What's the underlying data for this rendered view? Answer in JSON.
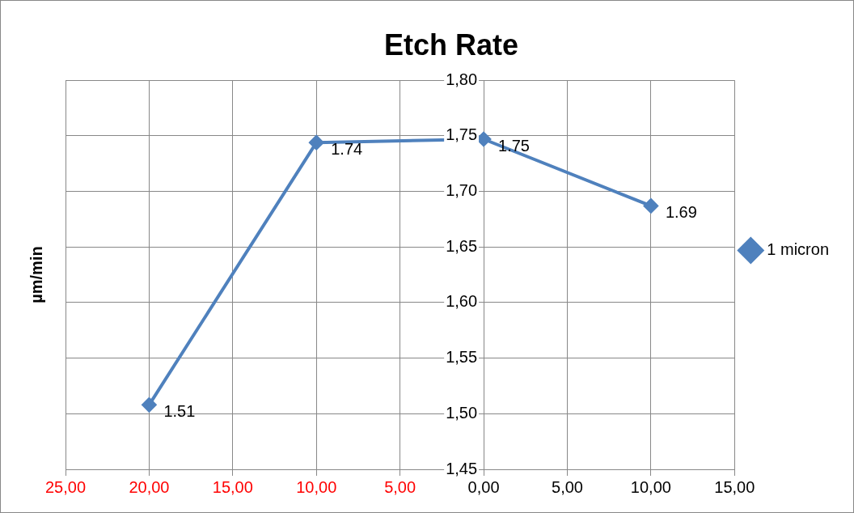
{
  "chart_data": {
    "type": "line",
    "title": "Etch Rate",
    "ylabel": "µm/min",
    "x": [
      -20,
      -10,
      0,
      10
    ],
    "series": [
      {
        "name": "1 micron",
        "color": "#4f81bd",
        "values": [
          1.508,
          1.744,
          1.747,
          1.687
        ],
        "value_labels": [
          "1.51",
          "1.74",
          "1.75",
          "1.69"
        ]
      }
    ],
    "xlim": [
      -25,
      15
    ],
    "xticks": [
      {
        "value": -25,
        "label": "25,00"
      },
      {
        "value": -20,
        "label": "20,00"
      },
      {
        "value": -15,
        "label": "15,00"
      },
      {
        "value": -10,
        "label": "10,00"
      },
      {
        "value": -5,
        "label": "5,00"
      },
      {
        "value": 0,
        "label": "0,00"
      },
      {
        "value": 5,
        "label": "5,00"
      },
      {
        "value": 10,
        "label": "10,00"
      },
      {
        "value": 15,
        "label": "15,00"
      }
    ],
    "ylim": [
      1.45,
      1.8
    ],
    "yticks": [
      {
        "value": 1.45,
        "label": "1,45"
      },
      {
        "value": 1.5,
        "label": "1,50"
      },
      {
        "value": 1.55,
        "label": "1,55"
      },
      {
        "value": 1.6,
        "label": "1,60"
      },
      {
        "value": 1.65,
        "label": "1,65"
      },
      {
        "value": 1.7,
        "label": "1,70"
      },
      {
        "value": 1.75,
        "label": "1,75"
      },
      {
        "value": 1.8,
        "label": "1,80"
      }
    ],
    "grid": true,
    "legend": "right",
    "marker": "diamond",
    "line_style": "solid"
  }
}
